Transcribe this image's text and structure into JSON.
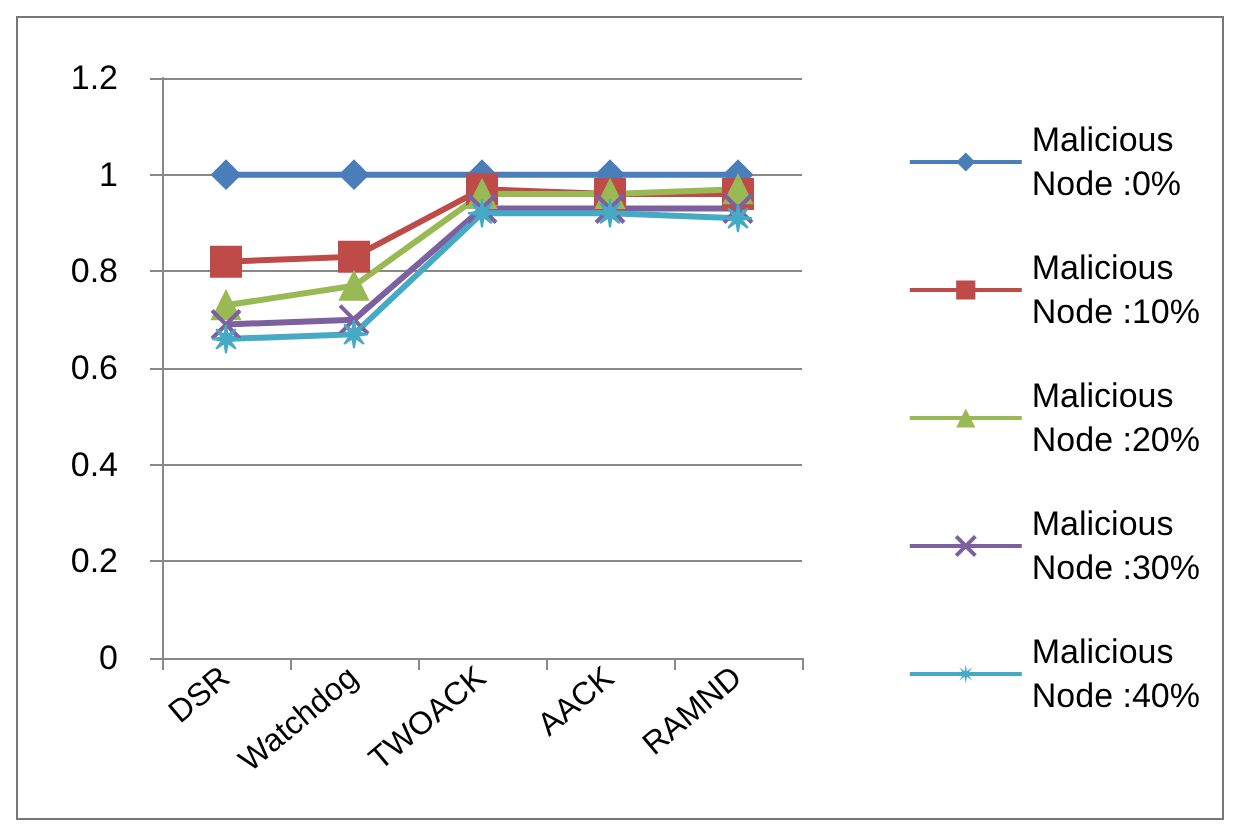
{
  "chart_data": {
    "type": "line",
    "categories": [
      "DSR",
      "Watchdog",
      "TWOACK",
      "AACK",
      "RAMND"
    ],
    "series": [
      {
        "name": "Malicious Node :0%",
        "color": "#4a7ebb",
        "marker": "diamond",
        "values": [
          1,
          1,
          1,
          1,
          1
        ]
      },
      {
        "name": "Malicious Node :10%",
        "color": "#be4b48",
        "marker": "square",
        "values": [
          0.82,
          0.83,
          0.97,
          0.96,
          0.96
        ]
      },
      {
        "name": "Malicious Node :20%",
        "color": "#98b954",
        "marker": "triangle",
        "values": [
          0.73,
          0.77,
          0.96,
          0.96,
          0.97
        ]
      },
      {
        "name": "Malicious Node :30%",
        "color": "#7d60a0",
        "marker": "cross",
        "values": [
          0.69,
          0.7,
          0.93,
          0.93,
          0.93
        ]
      },
      {
        "name": "Malicious Node :40%",
        "color": "#46aac5",
        "marker": "star",
        "values": [
          0.66,
          0.67,
          0.92,
          0.92,
          0.91
        ]
      }
    ],
    "ylim": [
      0,
      1.2
    ],
    "yticks": [
      0,
      0.2,
      0.4,
      0.6,
      0.8,
      1,
      1.2
    ],
    "grid": "y",
    "legend": "right"
  }
}
